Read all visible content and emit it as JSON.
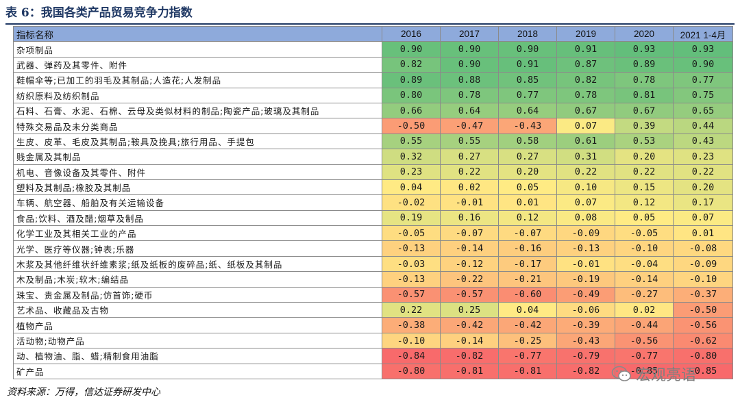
{
  "title": "表 6：我国各类产品贸易竞争力指数",
  "table": {
    "name_header": "指标名称",
    "years": [
      "2016",
      "2017",
      "2018",
      "2019",
      "2020",
      "2021 1-4月"
    ],
    "rows": [
      {
        "name": "杂项制品",
        "values": [
          "0.90",
          "0.90",
          "0.90",
          "0.91",
          "0.93",
          "0.93"
        ]
      },
      {
        "name": "武器、弹药及其零件、附件",
        "values": [
          "0.82",
          "0.90",
          "0.91",
          "0.87",
          "0.89",
          "0.90"
        ]
      },
      {
        "name": "鞋帽伞等;已加工的羽毛及其制品;人造花;人发制品",
        "values": [
          "0.89",
          "0.88",
          "0.85",
          "0.82",
          "0.78",
          "0.77"
        ]
      },
      {
        "name": "纺织原料及纺织制品",
        "values": [
          "0.80",
          "0.78",
          "0.77",
          "0.78",
          "0.81",
          "0.75"
        ]
      },
      {
        "name": "石料、石膏、水泥、石棉、云母及类似材料的制品;陶瓷产品;玻璃及其制品",
        "values": [
          "0.66",
          "0.64",
          "0.64",
          "0.67",
          "0.67",
          "0.65"
        ]
      },
      {
        "name": "特殊交易品及未分类商品",
        "values": [
          "-0.50",
          "-0.47",
          "-0.43",
          "0.07",
          "0.39",
          "0.44"
        ]
      },
      {
        "name": "生皮、皮革、毛皮及其制品;鞍具及挽具;旅行用品、手提包",
        "values": [
          "0.55",
          "0.55",
          "0.58",
          "0.61",
          "0.53",
          "0.43"
        ]
      },
      {
        "name": "贱金属及其制品",
        "values": [
          "0.32",
          "0.27",
          "0.27",
          "0.31",
          "0.20",
          "0.23"
        ]
      },
      {
        "name": "机电、音像设备及其零件、附件",
        "values": [
          "0.23",
          "0.22",
          "0.20",
          "0.22",
          "0.22",
          "0.22"
        ]
      },
      {
        "name": "塑料及其制品;橡胶及其制品",
        "values": [
          "0.04",
          "0.02",
          "0.05",
          "0.10",
          "0.15",
          "0.20"
        ]
      },
      {
        "name": "车辆、航空器、船舶及有关运输设备",
        "values": [
          "-0.02",
          "-0.01",
          "0.01",
          "0.07",
          "0.12",
          "0.17"
        ]
      },
      {
        "name": "食品;饮料、酒及醋;烟草及制品",
        "values": [
          "0.19",
          "0.16",
          "0.12",
          "0.08",
          "0.05",
          "0.07"
        ]
      },
      {
        "name": "化学工业及其相关工业的产品",
        "values": [
          "-0.05",
          "-0.07",
          "-0.07",
          "-0.09",
          "-0.05",
          "0.01"
        ]
      },
      {
        "name": "光学、医疗等仪器;钟表;乐器",
        "values": [
          "-0.13",
          "-0.14",
          "-0.16",
          "-0.13",
          "-0.10",
          "-0.08"
        ]
      },
      {
        "name": "木浆及其他纤维状纤维素浆;纸及纸板的废碎品;纸、纸板及其制品",
        "values": [
          "-0.03",
          "-0.12",
          "-0.17",
          "-0.01",
          "-0.04",
          "-0.09"
        ]
      },
      {
        "name": "木及制品;木炭;软木;编结品",
        "values": [
          "-0.13",
          "-0.22",
          "-0.21",
          "-0.19",
          "-0.14",
          "-0.10"
        ]
      },
      {
        "name": "珠宝、贵金属及制品;仿首饰;硬币",
        "values": [
          "-0.57",
          "-0.57",
          "-0.60",
          "-0.49",
          "-0.27",
          "-0.37"
        ]
      },
      {
        "name": "艺术品、收藏品及古物",
        "values": [
          "0.22",
          "0.25",
          "0.04",
          "-0.06",
          "0.02",
          "-0.50"
        ]
      },
      {
        "name": "植物产品",
        "values": [
          "-0.38",
          "-0.42",
          "-0.42",
          "-0.39",
          "-0.44",
          "-0.56"
        ]
      },
      {
        "name": "活动物;动物产品",
        "values": [
          "-0.10",
          "-0.14",
          "-0.25",
          "-0.43",
          "-0.56",
          "-0.62"
        ]
      },
      {
        "name": "动、植物油、脂、蜡;精制食用油脂",
        "values": [
          "-0.84",
          "-0.82",
          "-0.77",
          "-0.79",
          "-0.77",
          "-0.80"
        ]
      },
      {
        "name": "矿产品",
        "values": [
          "-0.80",
          "-0.81",
          "-0.81",
          "-0.82",
          "-0.85",
          "-0.85"
        ]
      }
    ]
  },
  "source": "资料来源：万得，信达证券研发中心",
  "watermark": "宏观亮语",
  "colors": {
    "header_bg": "#8eaadb",
    "scale_low": "#f8696b",
    "scale_mid": "#ffeb84",
    "scale_high": "#63be7b"
  }
}
